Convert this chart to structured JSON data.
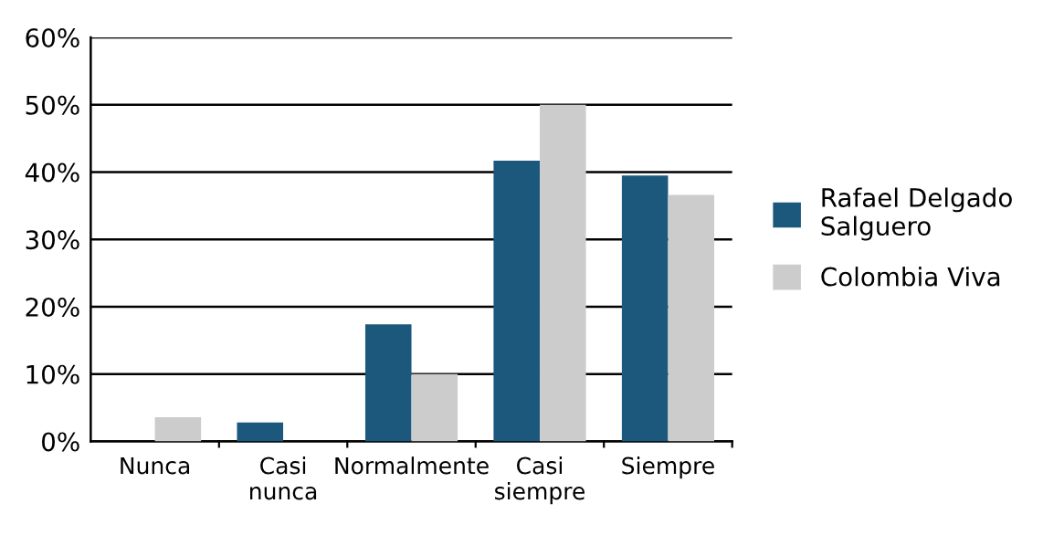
{
  "chart_data": {
    "type": "bar",
    "categories": [
      "Nunca",
      "Casi\nnunca",
      "Normalmente",
      "Casi\nsiempre",
      "Siempre"
    ],
    "series": [
      {
        "name": "Rafael Delgado\nSalguero",
        "color": "#1b587c",
        "values": [
          0,
          2.8,
          17.4,
          41.7,
          39.5
        ]
      },
      {
        "name": "Colombia Viva",
        "color": "#cccccc",
        "values": [
          3.6,
          0,
          10,
          50,
          36.6
        ]
      }
    ],
    "ylim": [
      0,
      60
    ],
    "yticks": [
      {
        "value": 0,
        "label": "0%"
      },
      {
        "value": 10,
        "label": "10%"
      },
      {
        "value": 20,
        "label": "20%"
      },
      {
        "value": 30,
        "label": "30%"
      },
      {
        "value": 40,
        "label": "40%"
      },
      {
        "value": 50,
        "label": "50%"
      },
      {
        "value": 60,
        "label": "60%"
      }
    ],
    "grid": "y",
    "legend": "right"
  }
}
